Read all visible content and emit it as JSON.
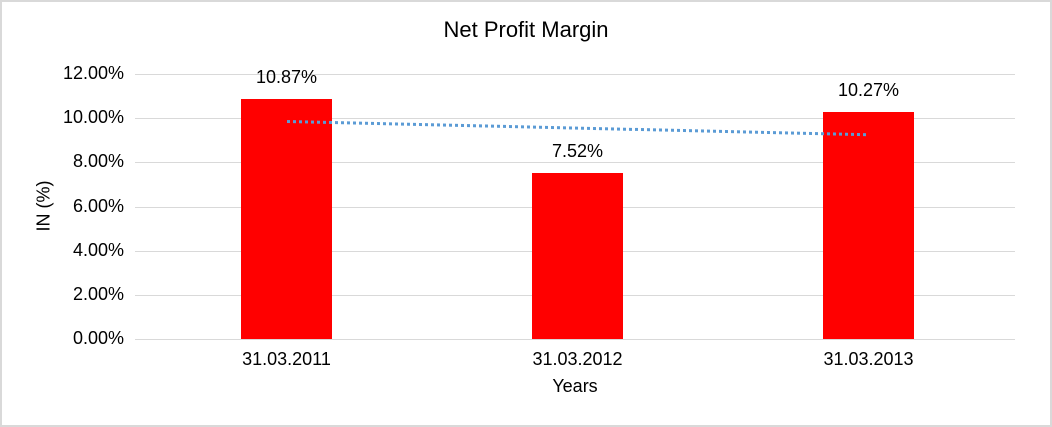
{
  "window": {
    "background_color": "#FFFFFF",
    "border_color": "#D9D9D9"
  },
  "chart_data": {
    "type": "bar",
    "title": "Net Profit Margin",
    "xlabel": "Years",
    "ylabel": "IN (%)",
    "categories": [
      "31.03.2011",
      "31.03.2012",
      "31.03.2013"
    ],
    "values": [
      10.87,
      7.52,
      10.27
    ],
    "data_labels": [
      "10.87%",
      "7.52%",
      "10.27%"
    ],
    "unit": "percent",
    "ylim": [
      0,
      12
    ],
    "ytick_step": 2,
    "ytick_labels": [
      "12.00%",
      "10.00%",
      "8.00%",
      "6.00%",
      "4.00%",
      "2.00%",
      "0.00%"
    ],
    "grid": true,
    "legend": false,
    "bar_color": "#FF0000",
    "gridline_color": "#D9D9D9",
    "text_color": "#000000",
    "trendline": {
      "type": "linear",
      "style": "dotted",
      "color": "#5B9BD5",
      "start_value": 9.85,
      "end_value": 9.25
    }
  }
}
